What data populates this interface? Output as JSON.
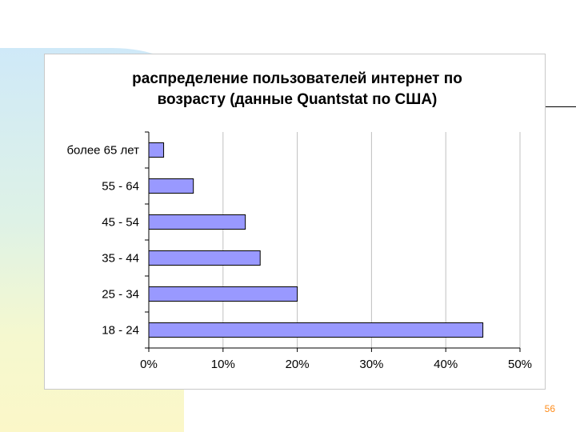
{
  "page_number": "56",
  "colors": {
    "bar_fill": "#9999ff",
    "bar_stroke": "#000000",
    "grid": "#c0c0c0",
    "page_number": "#ff8c1a"
  },
  "chart_data": {
    "type": "bar",
    "orientation": "horizontal",
    "title": [
      "распределение пользователей интернет по",
      "возрасту (данные Quantstat по США)"
    ],
    "categories": [
      "более 65 лет",
      "55 - 64",
      "45 - 54",
      "35 - 44",
      "25 - 34",
      "18 - 24"
    ],
    "values": [
      2,
      6,
      13,
      15,
      20,
      45
    ],
    "value_unit": "%",
    "xlim": [
      0,
      50
    ],
    "x_ticks": [
      "0%",
      "10%",
      "20%",
      "30%",
      "40%",
      "50%"
    ],
    "grid": "vertical",
    "legend": "none"
  }
}
